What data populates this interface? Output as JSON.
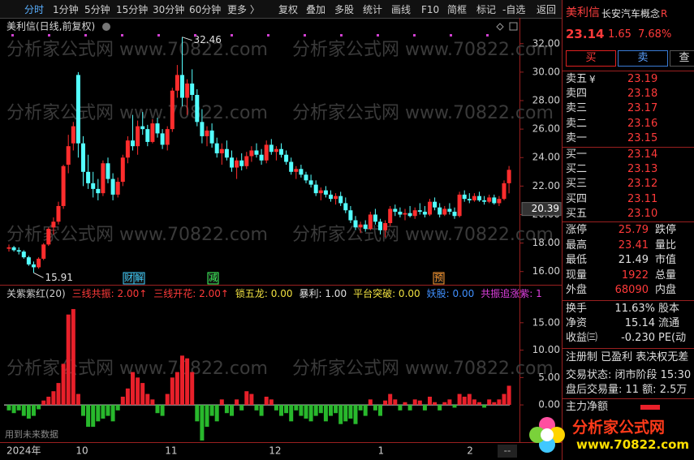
{
  "toolbar": {
    "left": [
      "分时",
      "1分钟",
      "5分钟",
      "15分钟",
      "30分钟",
      "60分钟",
      "更多 〉"
    ],
    "right": [
      "复权",
      "叠加",
      "多股",
      "统计",
      "画线",
      "F10",
      "简框",
      "标记",
      "-自选",
      "返回"
    ]
  },
  "watermark": "分析家公式网 www.70822.com",
  "chart_data": [
    {
      "type": "candlestick",
      "title": "美利信(日线,前复权)",
      "up_color": "#ff2d2d",
      "down_color": "#54ffff",
      "ylim": [
        15.3,
        32.5
      ],
      "yticks": [
        {
          "value": 16,
          "label": "16.00"
        },
        {
          "value": 18,
          "label": "18.00"
        },
        {
          "value": 20,
          "label": "20.00"
        },
        {
          "value": 22,
          "label": "22.00"
        },
        {
          "value": 24,
          "label": "24.00"
        },
        {
          "value": 26,
          "label": "26.00"
        },
        {
          "value": 28,
          "label": "28.00"
        },
        {
          "value": 30,
          "label": "30.00"
        },
        {
          "value": 32,
          "label": "32.00"
        }
      ],
      "high_label": 32.46,
      "low_label": 15.91,
      "cursor_price": 20.39,
      "events": [
        {
          "label": "财",
          "color": "#40d0ff"
        },
        {
          "label": "解",
          "color": "#40d0ff"
        },
        {
          "label": "减",
          "color": "#40ff60"
        },
        {
          "label": "预",
          "color": "#ff9a30"
        }
      ],
      "candles": [
        [
          17.6,
          17.9,
          17.4,
          17.7
        ],
        [
          17.7,
          17.8,
          17.4,
          17.5
        ],
        [
          17.5,
          17.7,
          17.2,
          17.4
        ],
        [
          17.4,
          17.5,
          16.9,
          17.0
        ],
        [
          17.0,
          17.1,
          16.4,
          16.5
        ],
        [
          16.5,
          16.7,
          15.91,
          16.3
        ],
        [
          16.3,
          17.0,
          16.2,
          16.9
        ],
        [
          16.9,
          18.0,
          16.8,
          17.9
        ],
        [
          17.9,
          19.1,
          17.8,
          19.0
        ],
        [
          19.1,
          19.8,
          18.6,
          19.5
        ],
        [
          19.5,
          20.9,
          19.3,
          20.6
        ],
        [
          20.6,
          23.5,
          20.4,
          23.4
        ],
        [
          23.5,
          25.6,
          22.9,
          24.8
        ],
        [
          25.0,
          26.5,
          24.5,
          26.2
        ],
        [
          29.8,
          30.0,
          24.0,
          25.0
        ],
        [
          25.0,
          25.5,
          22.0,
          23.0
        ],
        [
          23.0,
          24.2,
          21.8,
          22.2
        ],
        [
          22.2,
          23.0,
          21.2,
          21.8
        ],
        [
          21.8,
          22.5,
          21.0,
          21.5
        ],
        [
          21.5,
          23.8,
          21.3,
          23.6
        ],
        [
          23.6,
          24.0,
          22.2,
          22.5
        ],
        [
          22.5,
          22.9,
          21.0,
          21.4
        ],
        [
          21.4,
          22.6,
          21.2,
          22.3
        ],
        [
          22.3,
          24.2,
          22.0,
          24.0
        ],
        [
          24.0,
          25.5,
          23.6,
          25.2
        ],
        [
          25.2,
          27.0,
          24.5,
          24.8
        ],
        [
          24.8,
          26.6,
          24.2,
          26.2
        ],
        [
          26.2,
          27.2,
          25.6,
          26.0
        ],
        [
          26.0,
          26.3,
          24.8,
          25.1
        ],
        [
          25.1,
          26.7,
          25.0,
          26.4
        ],
        [
          26.4,
          26.8,
          25.4,
          25.7
        ],
        [
          25.7,
          26.0,
          24.6,
          24.9
        ],
        [
          24.9,
          26.2,
          24.5,
          26.0
        ],
        [
          26.0,
          28.9,
          25.8,
          28.7
        ],
        [
          28.7,
          30.5,
          28.2,
          29.8
        ],
        [
          29.8,
          32.46,
          27.6,
          28.2
        ],
        [
          28.2,
          29.5,
          27.0,
          29.2
        ],
        [
          29.2,
          30.2,
          28.0,
          28.4
        ],
        [
          28.4,
          28.8,
          26.2,
          26.5
        ],
        [
          26.5,
          27.4,
          25.0,
          25.5
        ],
        [
          25.5,
          26.2,
          24.8,
          25.9
        ],
        [
          25.9,
          26.4,
          24.7,
          25.0
        ],
        [
          25.0,
          25.4,
          24.0,
          24.3
        ],
        [
          24.3,
          25.0,
          23.5,
          24.6
        ],
        [
          24.6,
          25.2,
          23.8,
          24.0
        ],
        [
          24.0,
          24.5,
          23.0,
          23.3
        ],
        [
          23.3,
          24.0,
          22.5,
          23.8
        ],
        [
          23.8,
          24.3,
          23.1,
          23.4
        ],
        [
          23.4,
          24.4,
          23.2,
          24.1
        ],
        [
          24.1,
          24.8,
          23.7,
          24.5
        ],
        [
          24.5,
          25.0,
          24.0,
          24.2
        ],
        [
          24.2,
          24.6,
          23.5,
          23.8
        ],
        [
          23.8,
          25.2,
          23.6,
          24.9
        ],
        [
          24.9,
          25.3,
          24.2,
          24.4
        ],
        [
          24.4,
          24.8,
          23.8,
          24.6
        ],
        [
          24.6,
          25.0,
          24.0,
          24.2
        ],
        [
          24.2,
          24.5,
          23.5,
          23.7
        ],
        [
          23.7,
          24.0,
          22.8,
          23.0
        ],
        [
          23.0,
          23.4,
          22.5,
          23.2
        ],
        [
          23.2,
          23.5,
          22.6,
          22.8
        ],
        [
          22.8,
          23.0,
          22.2,
          22.4
        ],
        [
          22.4,
          22.8,
          21.9,
          22.1
        ],
        [
          22.1,
          22.4,
          21.3,
          21.5
        ],
        [
          21.5,
          21.9,
          21.0,
          21.7
        ],
        [
          21.7,
          22.0,
          21.2,
          21.4
        ],
        [
          21.4,
          21.7,
          20.9,
          21.1
        ],
        [
          21.1,
          21.5,
          20.7,
          21.3
        ],
        [
          21.3,
          21.6,
          20.6,
          20.8
        ],
        [
          20.8,
          21.2,
          20.1,
          20.3
        ],
        [
          20.3,
          20.6,
          19.4,
          19.6
        ],
        [
          19.6,
          19.9,
          18.9,
          19.1
        ],
        [
          19.1,
          19.5,
          18.7,
          19.3
        ],
        [
          19.3,
          19.6,
          18.8,
          19.0
        ],
        [
          19.0,
          20.2,
          18.9,
          20.0
        ],
        [
          20.0,
          20.4,
          19.3,
          19.5
        ],
        [
          19.5,
          19.7,
          18.6,
          18.9
        ],
        [
          18.9,
          19.6,
          18.4,
          19.4
        ],
        [
          19.4,
          20.6,
          19.2,
          20.4
        ],
        [
          20.4,
          20.7,
          19.9,
          20.2
        ],
        [
          20.2,
          20.5,
          19.8,
          20.0
        ],
        [
          20.0,
          20.4,
          19.6,
          20.1
        ],
        [
          20.1,
          20.6,
          19.8,
          19.9
        ],
        [
          19.9,
          20.5,
          19.7,
          20.3
        ],
        [
          20.3,
          20.8,
          20.0,
          20.2
        ],
        [
          20.2,
          20.6,
          19.8,
          20.0
        ],
        [
          20.0,
          21.1,
          19.9,
          20.9
        ],
        [
          20.9,
          21.2,
          20.3,
          20.5
        ],
        [
          20.5,
          20.8,
          19.8,
          20.0
        ],
        [
          20.0,
          20.6,
          19.9,
          20.4
        ],
        [
          20.4,
          20.8,
          20.0,
          20.2
        ],
        [
          20.2,
          20.5,
          19.7,
          19.9
        ],
        [
          19.9,
          21.6,
          19.8,
          21.4
        ],
        [
          21.4,
          21.7,
          20.9,
          21.1
        ],
        [
          21.1,
          21.5,
          20.8,
          21.0
        ],
        [
          21.0,
          21.5,
          20.9,
          21.3
        ],
        [
          21.3,
          21.6,
          20.9,
          21.0
        ],
        [
          21.0,
          21.3,
          20.7,
          20.9
        ],
        [
          20.9,
          21.4,
          20.8,
          21.2
        ],
        [
          21.2,
          21.4,
          20.7,
          20.8
        ],
        [
          20.8,
          21.3,
          20.6,
          21.1
        ],
        [
          21.1,
          22.4,
          21.0,
          22.2
        ],
        [
          22.2,
          23.41,
          21.49,
          23.14
        ]
      ]
    },
    {
      "type": "bar",
      "legend": [
        {
          "text": "关紫紫红(20)",
          "color": "#d0d0d0"
        },
        {
          "text": "三线共振: 2.00↑",
          "color": "#ff3a3a"
        },
        {
          "text": "三线开花: 2.00↑",
          "color": "#ff3a3a"
        },
        {
          "text": "锁五龙: 0.00",
          "color": "#f0e040"
        },
        {
          "text": "暴利: 1.00",
          "color": "#e0e0e0"
        },
        {
          "text": "平台突破: 0.00",
          "color": "#f0e040"
        },
        {
          "text": "妖股: 0.00",
          "color": "#4090ff"
        },
        {
          "text": "共振追涨紫: 1",
          "color": "#e040e0"
        }
      ],
      "note": "用到未来数据",
      "up_color": "#e8202a",
      "down_color": "#28b82c",
      "ylim": [
        -6.8,
        16.9
      ],
      "yticks": [
        {
          "value": 0,
          "label": "0.00"
        },
        {
          "value": 5,
          "label": "5.00"
        },
        {
          "value": 10,
          "label": "10.00"
        },
        {
          "value": 15,
          "label": "15.00"
        }
      ],
      "categories": [
        "2024年",
        null,
        null,
        null,
        null,
        null,
        null,
        null,
        null,
        null,
        null,
        null,
        null,
        null,
        "10",
        null,
        null,
        null,
        null,
        null,
        null,
        null,
        null,
        null,
        null,
        null,
        null,
        null,
        null,
        null,
        null,
        null,
        "11",
        null,
        null,
        null,
        null,
        null,
        null,
        null,
        null,
        null,
        null,
        null,
        null,
        null,
        null,
        null,
        null,
        null,
        null,
        null,
        null,
        "12",
        null,
        null,
        null,
        null,
        null,
        null,
        null,
        null,
        null,
        null,
        null,
        null,
        null,
        null,
        null,
        null,
        null,
        null,
        null,
        null,
        null,
        "1",
        null,
        null,
        null,
        null,
        null,
        null,
        null,
        null,
        null,
        null,
        null,
        null,
        null,
        null,
        null,
        null,
        null,
        "2",
        null,
        null,
        null,
        null,
        null,
        null,
        null,
        null
      ],
      "values": [
        -1,
        -1.5,
        -1,
        -2,
        -2.5,
        -2,
        -0.8,
        0.8,
        1.5,
        2.5,
        4,
        7.5,
        16.5,
        17.5,
        2,
        -2,
        -4,
        -4,
        -3,
        -2.5,
        -2,
        -3,
        -1,
        1.5,
        3,
        6,
        5,
        4,
        2,
        1,
        -1.5,
        -2,
        2,
        5,
        6,
        9,
        8.5,
        6,
        -3,
        -6.5,
        -4,
        -2,
        -3,
        1,
        -1.5,
        -2,
        1,
        -1,
        2.5,
        2,
        -1,
        -2,
        1.5,
        1,
        -1,
        -2,
        -1.5,
        -3,
        -1,
        -2,
        -2.5,
        -3,
        -2,
        -1.5,
        -3,
        -2,
        -1.5,
        -3.5,
        -3,
        -2.5,
        -3.5,
        -1,
        -2,
        1,
        -1,
        -2,
        0.8,
        2,
        1,
        -1,
        0.5,
        -1,
        1,
        0.8,
        -1,
        1.5,
        0.5,
        -1,
        0.5,
        1,
        -0.5,
        2,
        1.5,
        2,
        1,
        0.5,
        -0.5,
        1,
        0.5,
        1,
        2,
        3.5
      ]
    }
  ],
  "quote": {
    "name": "美利信",
    "concept": "长安汽车概念",
    "flag": "R",
    "price": "23.14",
    "change": "1.65",
    "change_pct": "7.68%",
    "buttons": [
      "买",
      "卖",
      "查"
    ],
    "currency_mark": "¥",
    "asks": [
      {
        "label": "卖五",
        "price": "23.19"
      },
      {
        "label": "卖四",
        "price": "23.18"
      },
      {
        "label": "卖三",
        "price": "23.17"
      },
      {
        "label": "卖二",
        "price": "23.16"
      },
      {
        "label": "卖一",
        "price": "23.15"
      }
    ],
    "bids": [
      {
        "label": "买一",
        "price": "23.14"
      },
      {
        "label": "买二",
        "price": "23.13"
      },
      {
        "label": "买三",
        "price": "23.12"
      },
      {
        "label": "买四",
        "price": "23.11"
      },
      {
        "label": "买五",
        "price": "23.10"
      }
    ],
    "stats": [
      {
        "label": "涨停",
        "value": "25.79",
        "label2": "跌停",
        "color": "#ff3a3a"
      },
      {
        "label": "最高",
        "value": "23.41",
        "label2": "量比",
        "color": "#ff3a3a"
      },
      {
        "label": "最低",
        "value": "21.49",
        "label2": "市值",
        "color": "#e0e0e0"
      },
      {
        "label": "现量",
        "value": "1922",
        "label2": "总量",
        "color": "#ff3a3a"
      },
      {
        "label": "外盘",
        "value": "68090",
        "label2": "内盘",
        "color": "#ff3a3a"
      }
    ],
    "stats2": [
      {
        "label": "换手",
        "value": "11.63%",
        "label2": "股本"
      },
      {
        "label": "净资",
        "value": "15.14",
        "label2": "流通"
      },
      {
        "label": "收益㈢",
        "value": "-0.230",
        "label2": "PE(动"
      }
    ],
    "info": [
      "注册制 已盈利 表决权无差",
      "交易状态: 闭市阶段 15:30",
      "盘后交易量: 11  额: 2.5万"
    ],
    "flow_label": "主力净额"
  },
  "logo": {
    "name": "分析家公式网",
    "url": "www.70822.com"
  }
}
